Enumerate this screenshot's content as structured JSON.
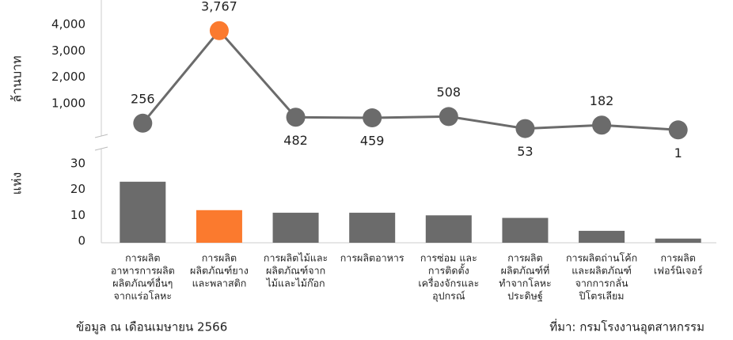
{
  "chart_data": [
    {
      "type": "line",
      "ylabel": "ล้านบาท",
      "values": [
        256,
        3767,
        482,
        459,
        508,
        53,
        182,
        1
      ],
      "value_labels": [
        "256",
        "3,767",
        "482",
        "459",
        "508",
        "53",
        "182",
        "1"
      ],
      "color": "#6b6b6b",
      "colors": [
        "#6b6b6b",
        "#fb7a2e",
        "#6b6b6b",
        "#6b6b6b",
        "#6b6b6b",
        "#6b6b6b",
        "#6b6b6b",
        "#6b6b6b"
      ],
      "ylim": [
        -500,
        4000
      ],
      "yticks": [
        {
          "value": 1000,
          "label": "1,000"
        },
        {
          "value": 2000,
          "label": "2,000"
        },
        {
          "value": 3000,
          "label": "3,000"
        },
        {
          "value": 4000,
          "label": "4,000"
        }
      ]
    },
    {
      "type": "bar",
      "ylabel": "แห่ง",
      "categories": [
        [
          "การผลิต",
          "อาหารการผลิต",
          "ผลิตภัณฑ์อื่นๆ",
          "จากแร่อโลหะ"
        ],
        [
          "การผลิต",
          "ผลิตภัณฑ์ยาง",
          "และพลาสติก"
        ],
        [
          "การผลิตไม้และ",
          "ผลิตภัณฑ์จาก",
          "ไม้และไม้ก๊อก"
        ],
        [
          "การผลิตอาหาร"
        ],
        [
          "การซ่อม และ",
          "การติดตั้ง",
          "เครื่องจักรและ",
          "อุปกรณ์"
        ],
        [
          "การผลิต",
          "ผลิตภัณฑ์ที่",
          "ทำจากโลหะ",
          "ประดิษฐ์"
        ],
        [
          "การผลิตถ่านโค้ก",
          "และผลิตภัณฑ์",
          "จากการกลั่น",
          "ปิโตรเลียม"
        ],
        [
          "การผลิต",
          "เฟอร์นิเจอร์"
        ]
      ],
      "values": [
        23,
        12,
        11,
        11,
        10,
        9,
        4,
        1
      ],
      "colors": [
        "#6b6b6b",
        "#fb7a2e",
        "#6b6b6b",
        "#6b6b6b",
        "#6b6b6b",
        "#6b6b6b",
        "#6b6b6b",
        "#6b6b6b"
      ],
      "ylim": [
        0,
        35
      ],
      "yticks": [
        0,
        10,
        20,
        30
      ]
    }
  ],
  "footer": {
    "note": "ข้อมูล ณ เดือนเมษายน 2566",
    "source": "ที่มา: กรมโรงงานอุตสาหกรรม"
  }
}
